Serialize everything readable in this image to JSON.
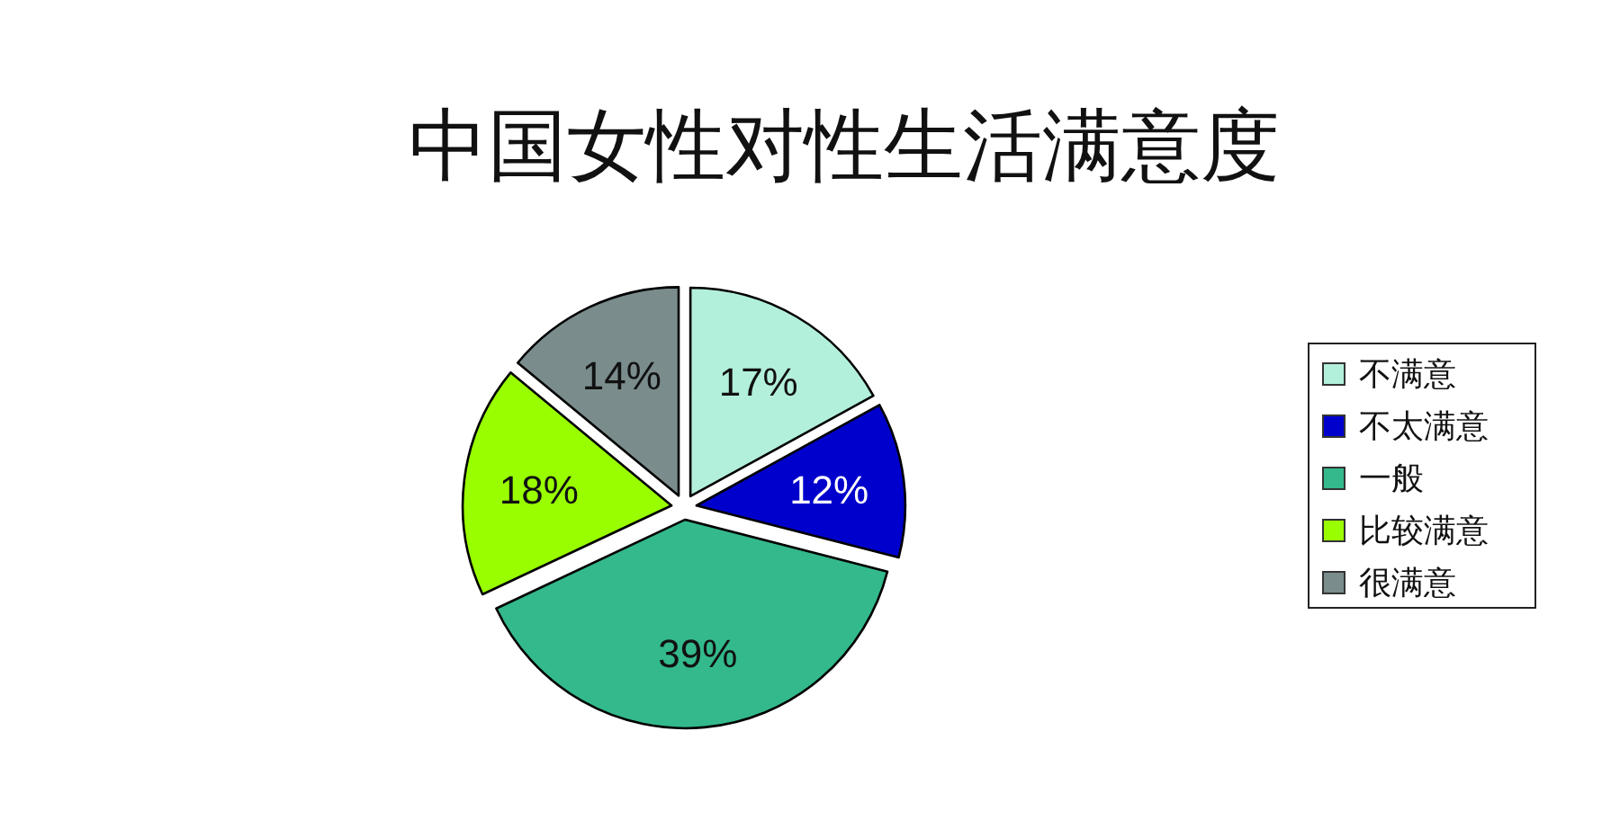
{
  "chart_data": {
    "type": "pie",
    "title": "中国女性对性生活满意度",
    "categories": [
      "不满意",
      "不太满意",
      "一般",
      "比较满意",
      "很满意"
    ],
    "values": [
      17,
      12,
      39,
      18,
      14
    ],
    "colors": [
      "#b3f0dc",
      "#0000cc",
      "#33b98c",
      "#99ff00",
      "#7a8c8c"
    ],
    "value_labels": [
      "17%",
      "12%",
      "39%",
      "18%",
      "14%"
    ],
    "legend": "right"
  }
}
